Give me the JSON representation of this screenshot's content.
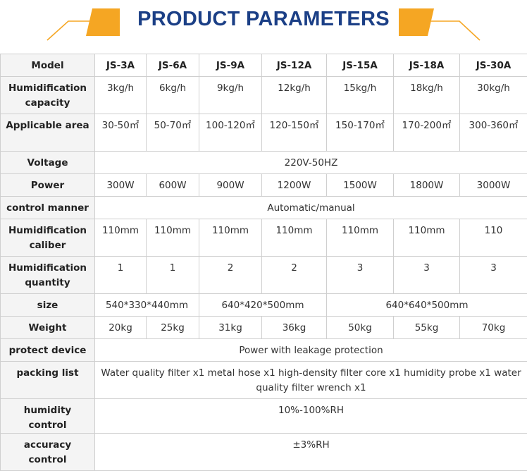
{
  "title": "PRODUCT PARAMETERS",
  "colors": {
    "accent": "#f5a623",
    "title": "#1b3f86",
    "label_bg": "#f4f4f4",
    "border": "#cfcfcf"
  },
  "header": {
    "label": "Model",
    "models": [
      "JS-3A",
      "JS-6A",
      "JS-9A",
      "JS-12A",
      "JS-15A",
      "JS-18A",
      "JS-30A"
    ]
  },
  "rows": {
    "capacity": {
      "label": "Humidification capacity",
      "values": [
        "3kg/h",
        "6kg/h",
        "9kg/h",
        "12kg/h",
        "15kg/h",
        "18kg/h",
        "30kg/h"
      ]
    },
    "area": {
      "label": "Applicable area",
      "values": [
        "30-50㎡",
        "50-70㎡",
        "100-120㎡",
        "120-150㎡",
        "150-170㎡",
        "170-200㎡",
        "300-360㎡"
      ]
    },
    "voltage": {
      "label": "Voltage",
      "value": "220V-50HZ"
    },
    "power": {
      "label": "Power",
      "values": [
        "300W",
        "600W",
        "900W",
        "1200W",
        "1500W",
        "1800W",
        "3000W"
      ]
    },
    "control_manner": {
      "label": "control manner",
      "value": "Automatic/manual"
    },
    "caliber": {
      "label": "Humidification caliber",
      "values": [
        "110mm",
        "110mm",
        "110mm",
        "110mm",
        "110mm",
        "110mm",
        "110"
      ]
    },
    "quantity": {
      "label": "Humidification quantity",
      "values": [
        "1",
        "1",
        "2",
        "2",
        "3",
        "3",
        "3"
      ]
    },
    "size": {
      "label": "size",
      "values": [
        "540*330*440mm",
        "640*420*500mm",
        "640*640*500mm"
      ]
    },
    "weight": {
      "label": "Weight",
      "values": [
        "20kg",
        "25kg",
        "31kg",
        "36kg",
        "50kg",
        "55kg",
        "70kg"
      ]
    },
    "protect": {
      "label": "protect device",
      "value": "Power with leakage protection"
    },
    "packing": {
      "label": "packing list",
      "value": "Water quality filter x1 metal hose x1 high-density filter core x1 humidity probe x1 water quality filter wrench x1"
    },
    "humidity_control": {
      "label": "humidity control",
      "value": "10%-100%RH"
    },
    "accuracy": {
      "label": "accuracy control",
      "value": "±3%RH"
    }
  }
}
